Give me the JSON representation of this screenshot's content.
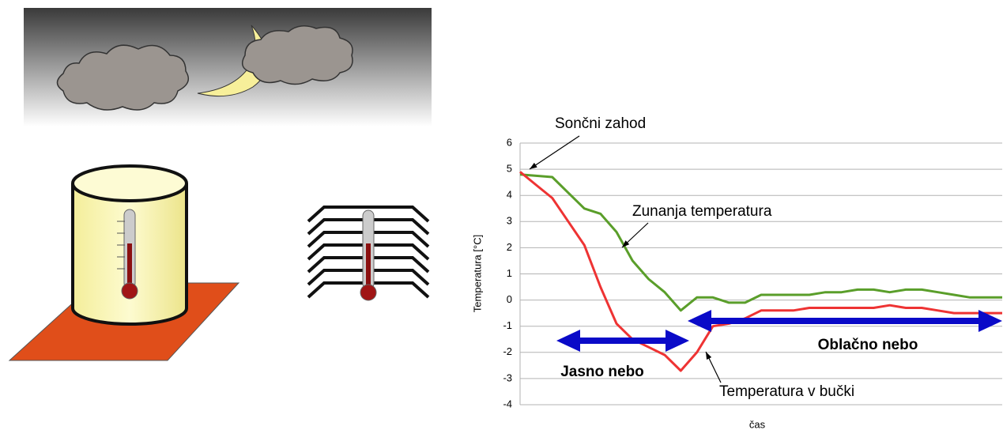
{
  "chart_data": {
    "type": "line",
    "ylabel": "Temperatura [°C]",
    "xlabel": "čas",
    "annotations": [
      "Sončni zahod",
      "Zunanja temperatura",
      "Temperatura v bučki",
      "Jasno nebo",
      "Oblačno nebo"
    ],
    "categories": [
      null,
      null,
      null,
      null,
      null,
      null,
      null,
      null,
      null,
      null,
      null,
      null,
      null,
      null,
      null,
      null,
      null,
      null,
      null,
      null,
      null,
      null,
      null,
      null,
      null,
      null,
      null,
      null,
      null,
      null,
      null
    ],
    "series": [
      {
        "name": "Zunanja temperatura",
        "color": "#5a9e2a",
        "values": [
          4.8,
          4.75,
          4.7,
          4.1,
          3.5,
          3.3,
          2.6,
          1.5,
          0.8,
          0.3,
          -0.4,
          0.1,
          0.1,
          -0.1,
          -0.1,
          0.2,
          0.2,
          0.2,
          0.2,
          0.3,
          0.3,
          0.4,
          0.4,
          0.3,
          0.4,
          0.4,
          0.3,
          0.2,
          0.1,
          0.1,
          0.1
        ]
      },
      {
        "name": "Temperatura v bučki",
        "color": "#ee3333",
        "values": [
          4.9,
          4.4,
          3.9,
          3.0,
          2.1,
          0.5,
          -0.9,
          -1.5,
          -1.8,
          -2.1,
          -2.7,
          -2.0,
          -1.0,
          -0.9,
          -0.7,
          -0.4,
          -0.4,
          -0.4,
          -0.3,
          -0.3,
          -0.3,
          -0.3,
          -0.3,
          -0.2,
          -0.3,
          -0.3,
          -0.4,
          -0.5,
          -0.5,
          -0.5,
          -0.5
        ]
      }
    ],
    "ylim": [
      -4,
      6
    ],
    "yticks": [
      -4,
      -3,
      -2,
      -1,
      0,
      1,
      2,
      3,
      4,
      5,
      6
    ],
    "grid": true
  }
}
